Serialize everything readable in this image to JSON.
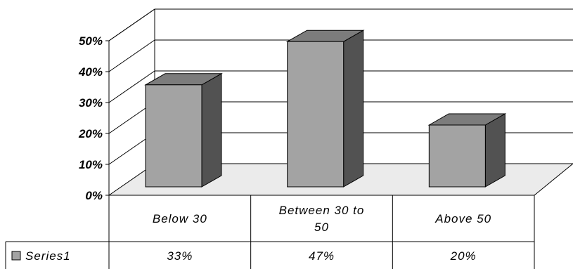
{
  "chart_data": {
    "type": "bar",
    "categories": [
      "Below 30",
      "Between 30 to 50",
      "Above 50"
    ],
    "category_lines": [
      [
        "Below 30"
      ],
      [
        "Between 30 to",
        "50"
      ],
      [
        "Above 50"
      ]
    ],
    "series": [
      {
        "name": "Series1",
        "values": [
          33,
          47,
          20
        ],
        "labels": [
          "33%",
          "47%",
          "20%"
        ]
      }
    ],
    "y_ticks": [
      "0%",
      "10%",
      "20%",
      "30%",
      "40%",
      "50%"
    ],
    "ylim": [
      0,
      50
    ],
    "grid": true,
    "legend_position": "data-table",
    "three_d": true,
    "colors": {
      "bar_front": "#a3a3a3",
      "bar_top": "#7c7c7c",
      "bar_side": "#525252",
      "floor": "#ebebeb"
    }
  }
}
